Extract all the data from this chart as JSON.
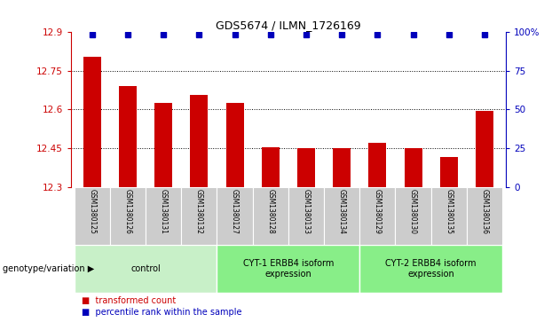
{
  "title": "GDS5674 / ILMN_1726169",
  "samples": [
    "GSM1380125",
    "GSM1380126",
    "GSM1380131",
    "GSM1380132",
    "GSM1380127",
    "GSM1380128",
    "GSM1380133",
    "GSM1380134",
    "GSM1380129",
    "GSM1380130",
    "GSM1380135",
    "GSM1380136"
  ],
  "bar_values": [
    12.805,
    12.69,
    12.625,
    12.655,
    12.625,
    12.455,
    12.45,
    12.45,
    12.47,
    12.45,
    12.415,
    12.595
  ],
  "ylim_left": [
    12.3,
    12.9
  ],
  "ylim_right": [
    0,
    100
  ],
  "yticks_left": [
    12.3,
    12.45,
    12.6,
    12.75,
    12.9
  ],
  "yticks_right": [
    0,
    25,
    50,
    75,
    100
  ],
  "ytick_labels_right": [
    "0",
    "25",
    "50",
    "75",
    "100%"
  ],
  "hlines": [
    12.75,
    12.6,
    12.45
  ],
  "bar_color": "#cc0000",
  "dot_color": "#0000bb",
  "groups": [
    {
      "label": "control",
      "start": 0,
      "end": 4,
      "color": "#c8f0c8"
    },
    {
      "label": "CYT-1 ERBB4 isoform\nexpression",
      "start": 4,
      "end": 8,
      "color": "#88ee88"
    },
    {
      "label": "CYT-2 ERBB4 isoform\nexpression",
      "start": 8,
      "end": 12,
      "color": "#88ee88"
    }
  ],
  "legend_bar_label": "transformed count",
  "legend_dot_label": "percentile rank within the sample",
  "genotype_label": "genotype/variation",
  "bg_color": "#ffffff",
  "tick_area_color": "#cccccc",
  "bar_width": 0.5,
  "dot_size": 4,
  "title_fontsize": 9,
  "tick_fontsize": 7.5,
  "sample_fontsize": 5.5,
  "group_fontsize": 7,
  "legend_fontsize": 7,
  "genotype_fontsize": 7
}
